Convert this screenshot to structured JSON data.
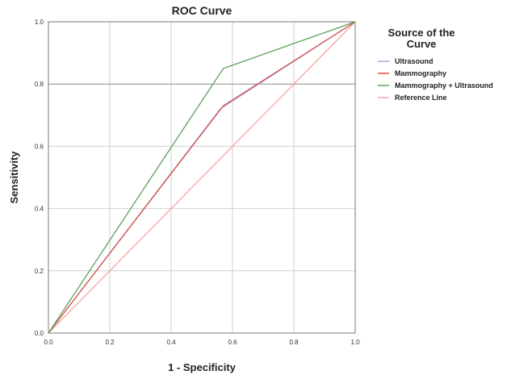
{
  "chart_data": {
    "type": "line",
    "title": "ROC Curve",
    "xlabel": "1 - Specificity",
    "ylabel": "Sensitivity",
    "xlim": [
      0,
      1
    ],
    "ylim": [
      0,
      1
    ],
    "xticks": [
      "0.0",
      "0.2",
      "0.4",
      "0.6",
      "0.8",
      "1.0"
    ],
    "yticks": [
      "0.0",
      "0.2",
      "0.4",
      "0.6",
      "0.8",
      "1.0"
    ],
    "grid": true,
    "legend": {
      "title_lines": [
        "Source of the",
        "Curve"
      ],
      "placement": "right"
    },
    "series": [
      {
        "name": "Ultrasound",
        "color": "#a9a6de",
        "x": [
          0,
          0.56,
          1
        ],
        "y": [
          0,
          0.72,
          1
        ]
      },
      {
        "name": "Mammography",
        "color": "#d9534a",
        "x": [
          0,
          0.57,
          1
        ],
        "y": [
          0,
          0.73,
          1
        ]
      },
      {
        "name": "Mammography + Ultrasound",
        "color": "#5aa05a",
        "x": [
          0,
          0.57,
          1
        ],
        "y": [
          0,
          0.85,
          1
        ]
      },
      {
        "name": "Reference Line",
        "color": "#f4a7a0",
        "x": [
          0,
          1
        ],
        "y": [
          0,
          1
        ]
      }
    ]
  }
}
